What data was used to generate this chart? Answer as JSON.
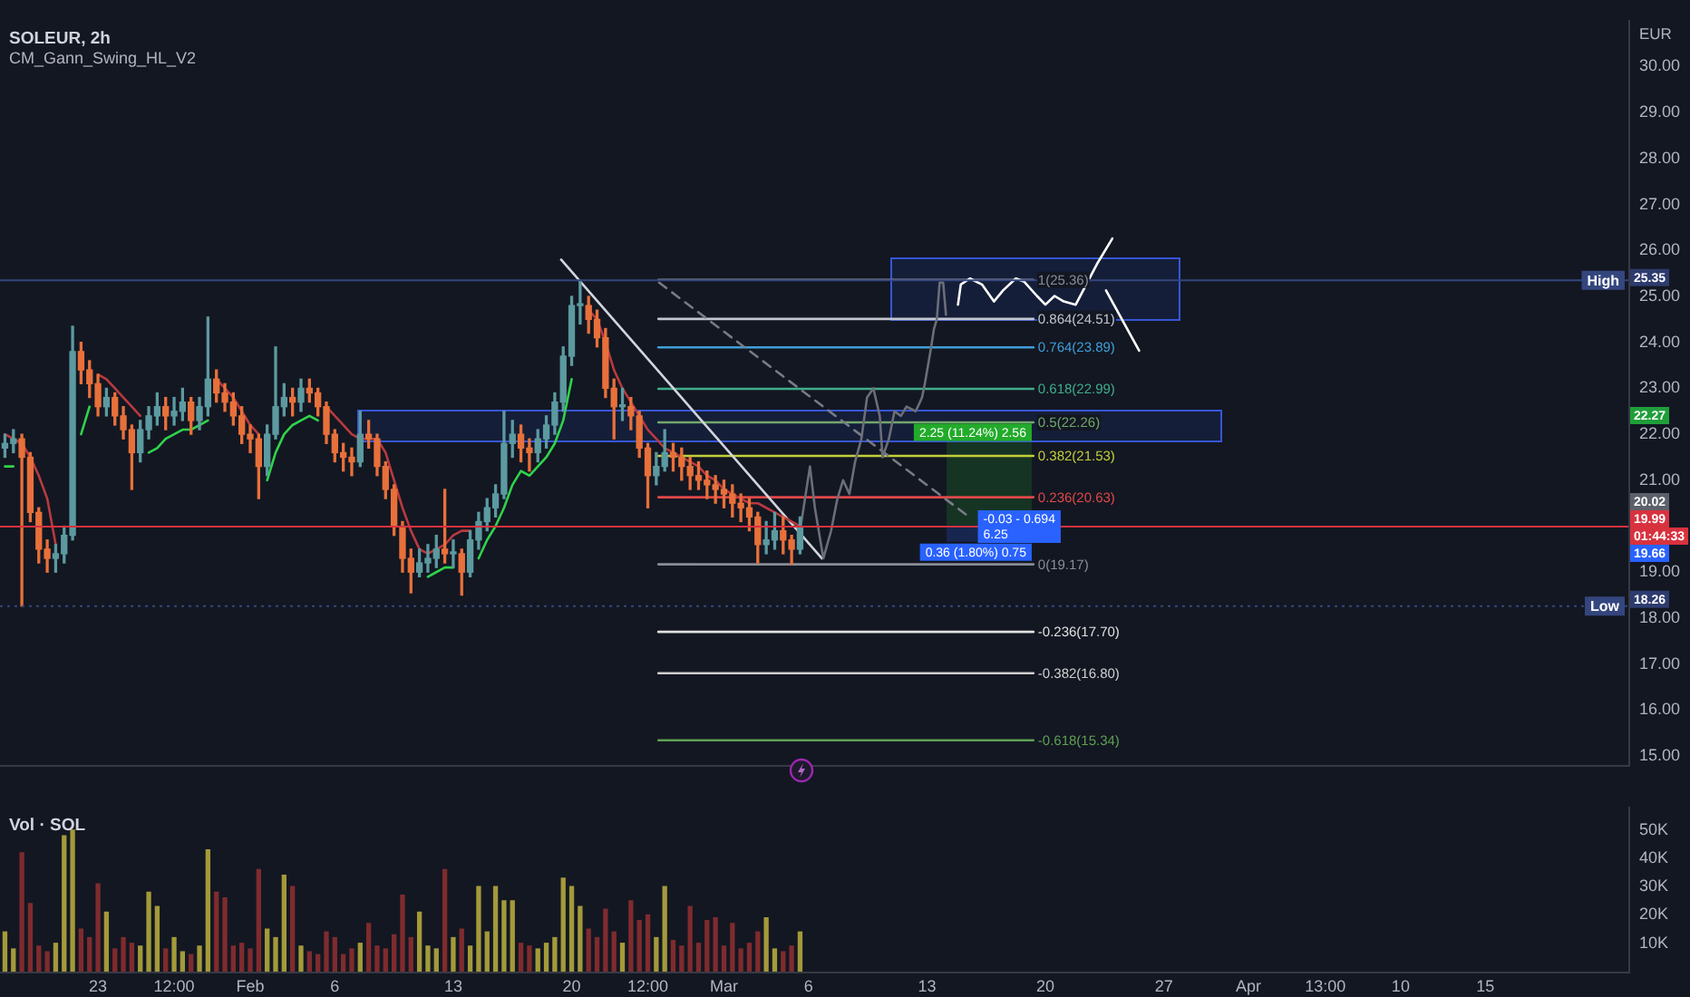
{
  "chart_data": [
    {
      "type": "candlestick",
      "title": "SOLEUR, 2h",
      "subtitle": "CM_Gann_Swing_HL_V2",
      "ylabel": "EUR",
      "tick_labels": "y",
      "x": [
        "--01-17T12:00",
        "--01-18T00:00",
        "--01-18T12:00",
        "--01-19T00:00",
        "--01-19T12:00",
        "--01-20T00:00",
        "--01-20T12:00",
        "--01-21T00:00",
        "--01-21T12:00",
        "--01-22T00:00",
        "--01-22T12:00",
        "--01-23T00:00",
        "--01-23T12:00",
        "--01-24T00:00",
        "--01-24T12:00",
        "--01-25T00:00",
        "--01-25T12:00",
        "--01-26T00:00",
        "--01-26T12:00",
        "--01-27T00:00",
        "--01-27T12:00",
        "--01-28T00:00",
        "--01-28T12:00",
        "--01-29T00:00",
        "--01-29T12:00",
        "--01-30T00:00",
        "--01-30T12:00",
        "--01-31T00:00",
        "--01-31T12:00",
        "--02-01T00:00",
        "--02-01T12:00",
        "--02-02T00:00",
        "--02-02T12:00",
        "--02-03T00:00",
        "--02-03T12:00",
        "--02-04T00:00",
        "--02-04T12:00",
        "--02-05T00:00",
        "--02-05T12:00",
        "--02-06T00:00",
        "--02-06T12:00",
        "--02-07T00:00",
        "--02-07T12:00",
        "--02-08T00:00",
        "--02-08T12:00",
        "--02-09T00:00",
        "--02-09T12:00",
        "--02-10T00:00",
        "--02-10T12:00",
        "--02-11T00:00",
        "--02-11T12:00",
        "--02-12T00:00",
        "--02-12T12:00",
        "--02-13T00:00",
        "--02-13T12:00",
        "--02-14T00:00",
        "--02-14T12:00",
        "--02-15T00:00",
        "--02-15T12:00",
        "--02-16T00:00",
        "--02-16T12:00",
        "--02-17T00:00",
        "--02-17T12:00",
        "--02-18T00:00",
        "--02-18T12:00",
        "--02-19T00:00",
        "--02-19T12:00",
        "--02-20T00:00",
        "--02-20T12:00",
        "--02-21T00:00",
        "--02-21T12:00",
        "--02-22T00:00",
        "--02-22T12:00",
        "--02-23T00:00",
        "--02-23T12:00",
        "--02-24T00:00",
        "--02-24T12:00",
        "--02-25T00:00",
        "--02-25T12:00",
        "--02-26T00:00",
        "--02-26T12:00",
        "--02-27T00:00",
        "--02-27T12:00",
        "--02-28T00:00",
        "--02-28T12:00",
        "--03-01T00:00",
        "--03-01T12:00",
        "--03-02T00:00",
        "--03-02T12:00",
        "--03-03T00:00",
        "--03-03T12:00",
        "--03-04T00:00",
        "--03-04T12:00",
        "--03-05T00:00",
        "--03-05T12:00"
      ],
      "ohlc": [
        [
          21.7,
          22.0,
          21.5,
          21.8
        ],
        [
          21.8,
          22.1,
          21.6,
          21.9
        ],
        [
          21.9,
          22.0,
          18.26,
          21.5
        ],
        [
          21.5,
          21.6,
          20.1,
          20.3
        ],
        [
          20.3,
          20.4,
          19.2,
          19.5
        ],
        [
          19.5,
          19.7,
          19.0,
          19.3
        ],
        [
          19.3,
          19.6,
          19.0,
          19.4
        ],
        [
          19.4,
          20.0,
          19.2,
          19.8
        ],
        [
          19.8,
          24.35,
          19.7,
          23.8
        ],
        [
          23.8,
          24.0,
          23.1,
          23.4
        ],
        [
          23.4,
          23.6,
          22.8,
          23.1
        ],
        [
          23.1,
          23.3,
          22.4,
          22.6
        ],
        [
          22.6,
          23.0,
          22.4,
          22.8
        ],
        [
          22.8,
          22.9,
          22.2,
          22.4
        ],
        [
          22.4,
          22.6,
          21.9,
          22.1
        ],
        [
          22.1,
          22.2,
          20.8,
          21.6
        ],
        [
          21.6,
          22.3,
          21.4,
          22.1
        ],
        [
          22.1,
          22.6,
          21.9,
          22.4
        ],
        [
          22.4,
          22.9,
          22.2,
          22.6
        ],
        [
          22.6,
          22.8,
          22.1,
          22.4
        ],
        [
          22.4,
          22.8,
          22.2,
          22.5
        ],
        [
          22.5,
          23.0,
          22.3,
          22.7
        ],
        [
          22.7,
          22.8,
          22.0,
          22.3
        ],
        [
          22.3,
          22.8,
          22.1,
          22.6
        ],
        [
          22.6,
          24.55,
          22.4,
          23.2
        ],
        [
          23.2,
          23.4,
          22.7,
          22.9
        ],
        [
          22.9,
          23.1,
          22.5,
          22.7
        ],
        [
          22.7,
          22.9,
          22.2,
          22.4
        ],
        [
          22.4,
          22.6,
          21.8,
          22.0
        ],
        [
          22.0,
          22.2,
          21.6,
          21.9
        ],
        [
          21.9,
          22.0,
          20.6,
          21.3
        ],
        [
          21.3,
          22.2,
          21.1,
          22.0
        ],
        [
          22.0,
          23.9,
          21.9,
          22.6
        ],
        [
          22.6,
          23.1,
          22.4,
          22.8
        ],
        [
          22.8,
          23.0,
          22.4,
          22.7
        ],
        [
          22.7,
          23.2,
          22.5,
          23.0
        ],
        [
          23.0,
          23.2,
          22.7,
          22.9
        ],
        [
          22.9,
          23.0,
          22.4,
          22.6
        ],
        [
          22.6,
          22.7,
          21.8,
          22.0
        ],
        [
          22.0,
          22.1,
          21.4,
          21.6
        ],
        [
          21.6,
          21.8,
          21.2,
          21.5
        ],
        [
          21.5,
          21.7,
          21.1,
          21.4
        ],
        [
          21.4,
          22.5,
          21.3,
          22.0
        ],
        [
          22.0,
          22.3,
          21.7,
          21.9
        ],
        [
          21.9,
          22.0,
          21.1,
          21.3
        ],
        [
          21.3,
          21.4,
          20.6,
          20.8
        ],
        [
          20.8,
          20.9,
          19.8,
          20.0
        ],
        [
          20.0,
          20.1,
          19.0,
          19.3
        ],
        [
          19.3,
          19.5,
          18.55,
          19.0
        ],
        [
          19.0,
          19.5,
          18.9,
          19.2
        ],
        [
          19.2,
          19.6,
          19.0,
          19.3
        ],
        [
          19.3,
          19.8,
          19.1,
          19.5
        ],
        [
          19.5,
          20.8,
          19.2,
          19.4
        ],
        [
          19.4,
          19.7,
          19.1,
          19.4
        ],
        [
          19.4,
          19.5,
          18.5,
          19.0
        ],
        [
          19.0,
          19.9,
          18.9,
          19.7
        ],
        [
          19.7,
          20.3,
          19.5,
          20.1
        ],
        [
          20.1,
          20.6,
          19.9,
          20.4
        ],
        [
          20.4,
          20.9,
          20.2,
          20.7
        ],
        [
          20.7,
          22.5,
          20.6,
          21.8
        ],
        [
          21.8,
          22.3,
          21.5,
          22.0
        ],
        [
          22.0,
          22.2,
          21.4,
          21.7
        ],
        [
          21.7,
          21.9,
          21.2,
          21.6
        ],
        [
          21.6,
          22.1,
          21.4,
          21.9
        ],
        [
          21.9,
          22.4,
          21.7,
          22.2
        ],
        [
          22.2,
          22.9,
          22.0,
          22.7
        ],
        [
          22.7,
          23.9,
          22.5,
          23.7
        ],
        [
          23.7,
          25.0,
          23.5,
          24.8
        ],
        [
          24.8,
          25.35,
          24.4,
          24.8
        ],
        [
          24.8,
          25.0,
          24.2,
          24.5
        ],
        [
          24.5,
          24.7,
          23.9,
          24.1
        ],
        [
          24.1,
          24.3,
          22.8,
          23.0
        ],
        [
          23.0,
          23.2,
          21.9,
          22.6
        ],
        [
          22.6,
          23.0,
          22.3,
          22.6
        ],
        [
          22.6,
          22.8,
          22.1,
          22.4
        ],
        [
          22.4,
          22.5,
          21.5,
          21.7
        ],
        [
          21.7,
          21.8,
          20.4,
          21.1
        ],
        [
          21.1,
          21.6,
          20.9,
          21.3
        ],
        [
          21.3,
          22.1,
          21.2,
          21.6
        ],
        [
          21.6,
          21.8,
          21.2,
          21.5
        ],
        [
          21.5,
          21.7,
          21.0,
          21.3
        ],
        [
          21.3,
          21.5,
          20.8,
          21.1
        ],
        [
          21.1,
          21.4,
          20.8,
          21.0
        ],
        [
          21.0,
          21.2,
          20.6,
          20.9
        ],
        [
          20.9,
          21.1,
          20.5,
          20.8
        ],
        [
          20.8,
          21.0,
          20.4,
          20.7
        ],
        [
          20.7,
          20.9,
          20.2,
          20.5
        ],
        [
          20.5,
          20.7,
          20.1,
          20.4
        ],
        [
          20.4,
          20.6,
          19.9,
          20.2
        ],
        [
          20.2,
          20.3,
          19.2,
          19.6
        ],
        [
          19.6,
          20.1,
          19.4,
          19.7
        ],
        [
          19.7,
          20.3,
          19.5,
          19.9
        ],
        [
          19.9,
          20.2,
          19.4,
          19.7
        ],
        [
          19.7,
          19.8,
          19.17,
          19.5
        ],
        [
          19.5,
          20.2,
          19.4,
          19.99
        ]
      ],
      "colors": [
        "#5b9aa0",
        "#5b9aa0",
        "#e8703a",
        "#e8703a",
        "#e8703a",
        "#e8703a",
        "#5b9aa0",
        "#5b9aa0",
        "#5b9aa0",
        "#e8703a",
        "#e8703a",
        "#e8703a",
        "#5b9aa0",
        "#e8703a",
        "#e8703a",
        "#e8703a",
        "#5b9aa0",
        "#5b9aa0",
        "#5b9aa0",
        "#e8703a",
        "#5b9aa0",
        "#5b9aa0",
        "#e8703a",
        "#5b9aa0",
        "#5b9aa0",
        "#e8703a",
        "#e8703a",
        "#e8703a",
        "#e8703a",
        "#e8703a",
        "#e8703a",
        "#5b9aa0",
        "#5b9aa0",
        "#5b9aa0",
        "#e8703a",
        "#5b9aa0",
        "#e8703a",
        "#e8703a",
        "#e8703a",
        "#e8703a",
        "#e8703a",
        "#e8703a",
        "#5b9aa0",
        "#e8703a",
        "#e8703a",
        "#e8703a",
        "#e8703a",
        "#e8703a",
        "#e8703a",
        "#5b9aa0",
        "#5b9aa0",
        "#5b9aa0",
        "#e8703a",
        "#5b9aa0",
        "#e8703a",
        "#5b9aa0",
        "#5b9aa0",
        "#5b9aa0",
        "#5b9aa0",
        "#5b9aa0",
        "#5b9aa0",
        "#e8703a",
        "#e8703a",
        "#5b9aa0",
        "#5b9aa0",
        "#5b9aa0",
        "#5b9aa0",
        "#5b9aa0",
        "#5b9aa0",
        "#e8703a",
        "#e8703a",
        "#e8703a",
        "#e8703a",
        "#5b9aa0",
        "#e8703a",
        "#e8703a",
        "#e8703a",
        "#5b9aa0",
        "#5b9aa0",
        "#e8703a",
        "#e8703a",
        "#e8703a",
        "#e8703a",
        "#e8703a",
        "#e8703a",
        "#e8703a",
        "#e8703a",
        "#e8703a",
        "#e8703a",
        "#e8703a",
        "#5b9aa0",
        "#5b9aa0",
        "#e8703a",
        "#e8703a",
        "#5b9aa0"
      ],
      "series": [
        {
          "type": "line",
          "color": "#b83a3f",
          "values": [
            22.0,
            21.9,
            21.8,
            21.5,
            21.1,
            20.6,
            19.6,
            null,
            null,
            null,
            null,
            23.3,
            23.2,
            23.0,
            22.8,
            22.6,
            22.4,
            null,
            null,
            null,
            null,
            null,
            null,
            null,
            null,
            23.2,
            23.0,
            22.8,
            22.5,
            22.2,
            22.0,
            null,
            null,
            null,
            null,
            null,
            null,
            null,
            22.6,
            22.4,
            22.2,
            22.0,
            21.9,
            21.9,
            21.9,
            21.6,
            21.0,
            20.4,
            19.9,
            19.5,
            19.4,
            19.5,
            19.6,
            19.8,
            19.9,
            19.9,
            null,
            null,
            null,
            null,
            null,
            null,
            null,
            null,
            null,
            null,
            null,
            null,
            null,
            24.7,
            24.5,
            24.0,
            23.4,
            23.0,
            22.7,
            22.4,
            22.1,
            21.9,
            21.7,
            21.6,
            21.5,
            21.4,
            21.3,
            21.1,
            21.0,
            20.8,
            20.7,
            20.6,
            20.5,
            20.5,
            20.4,
            20.3,
            20.2,
            20.1,
            20.0
          ]
        },
        {
          "type": "line",
          "color": "#2fd34a",
          "values": [
            21.3,
            21.3,
            null,
            null,
            null,
            null,
            null,
            null,
            null,
            22.0,
            22.6,
            null,
            null,
            null,
            null,
            null,
            null,
            21.6,
            21.7,
            21.9,
            22.0,
            22.1,
            22.1,
            22.2,
            22.3,
            null,
            null,
            null,
            null,
            null,
            null,
            21.0,
            21.6,
            22.0,
            22.2,
            22.3,
            22.4,
            22.3,
            null,
            null,
            null,
            null,
            null,
            null,
            null,
            null,
            null,
            null,
            null,
            null,
            18.9,
            19.0,
            19.1,
            19.1,
            null,
            null,
            19.3,
            19.7,
            20.0,
            20.4,
            20.9,
            21.2,
            21.1,
            21.3,
            21.5,
            21.8,
            22.3,
            23.2,
            null,
            null,
            null,
            null,
            null,
            null,
            null,
            null,
            null,
            null,
            null,
            null,
            null,
            null,
            null,
            null,
            null,
            null,
            null,
            null,
            null,
            null,
            null,
            null,
            null,
            null,
            null
          ]
        },
        {
          "type": "line",
          "color": "#6b6e78",
          "x": [
            "--03-05T13:00",
            "--03-06T02:00",
            "--03-06T09:00",
            "--03-06T21:00",
            "--03-07T08:00",
            "--03-07T17:00",
            "--03-08T01:00",
            "--03-08T10:00",
            "--03-08T18:00",
            "--03-09T03:00",
            "--03-09T11:00",
            "--03-09T20:00",
            "--03-10T05:00",
            "--03-10T09:00",
            "--03-10T18:00",
            "--03-11T02:00",
            "--03-11T11:00",
            "--03-11T19:00",
            "--03-12T08:00",
            "--03-12T17:00",
            "--03-12T21:00",
            "--03-13T06:00",
            "--03-13T10:00",
            "--03-13T14:00",
            "--03-13T18:00",
            "--03-13T23:00",
            "--03-14T03:00"
          ],
          "values": [
            20.0,
            21.3,
            20.4,
            19.3,
            19.9,
            20.6,
            21.0,
            20.7,
            21.4,
            21.9,
            22.8,
            23.0,
            22.4,
            21.5,
            21.9,
            22.5,
            22.4,
            22.6,
            22.5,
            22.8,
            23.1,
            23.9,
            24.3,
            24.5,
            25.3,
            25.3,
            24.6
          ]
        },
        {
          "type": "line",
          "color": "#d1d4dc",
          "x": [
            "--02-19T09:00",
            "--03-06T19:00"
          ],
          "values": [
            25.8,
            19.3
          ]
        },
        {
          "type": "line",
          "color": "#787b86",
          "line_style": "dashed",
          "x": [
            "--02-25T04:00",
            "--03-15T12:00"
          ],
          "values": [
            25.3,
            20.2
          ]
        },
        {
          "type": "line",
          "color": "#ffffff",
          "x": [
            "--03-14T20:00",
            "--03-15T00:00",
            "--03-15T13:00",
            "--03-16T06:00",
            "--03-16T23:00",
            "--03-17T12:00",
            "--03-18T06:00",
            "--03-18T18:00",
            "--03-19T12:00",
            "--03-20T00:00",
            "--03-20T13:00",
            "--03-21T02:00",
            "--03-21T19:00",
            "--03-22T08:00",
            "--03-23T01:00",
            "--03-23T23:00"
          ],
          "values": [
            24.82,
            25.26,
            25.39,
            25.26,
            24.89,
            25.13,
            25.39,
            25.32,
            25.01,
            24.82,
            25.01,
            24.89,
            24.82,
            25.2,
            25.7,
            26.26
          ]
        },
        {
          "type": "line",
          "color": "#ffffff",
          "x": [
            "--03-23T14:00",
            "--03-25T13:00"
          ],
          "values": [
            25.13,
            23.82
          ]
        },
        {
          "type": "line",
          "name": "1(25.36)",
          "color": "#8a8d96",
          "x": [
            "--02-25T03:00",
            "--03-19T07:00"
          ],
          "values": [
            25.36,
            25.36
          ]
        },
        {
          "type": "line",
          "name": "0.864(24.51)",
          "color": "#c3c6ce",
          "x": [
            "--02-25T03:00",
            "--03-19T07:00"
          ],
          "values": [
            24.51,
            24.51
          ]
        },
        {
          "type": "line",
          "name": "0.764(23.89)",
          "color": "#3f9fd8",
          "x": [
            "--02-25T03:00",
            "--03-19T07:00"
          ],
          "values": [
            23.89,
            23.89
          ]
        },
        {
          "type": "line",
          "name": "0.618(22.99)",
          "color": "#3fae8a",
          "x": [
            "--02-25T03:00",
            "--03-19T07:00"
          ],
          "values": [
            22.99,
            22.99
          ]
        },
        {
          "type": "line",
          "name": "0.5(22.26)",
          "color": "#72a86c",
          "x": [
            "--02-25T03:00",
            "--03-19T07:00"
          ],
          "values": [
            22.26,
            22.26
          ]
        },
        {
          "type": "line",
          "name": "0.382(21.53)",
          "color": "#c3cf3a",
          "x": [
            "--02-25T03:00",
            "--03-19T07:00"
          ],
          "values": [
            21.53,
            21.53
          ]
        },
        {
          "type": "line",
          "name": "0.236(20.63)",
          "color": "#e04848",
          "x": [
            "--02-25T03:00",
            "--03-19T07:00"
          ],
          "values": [
            20.63,
            20.63
          ]
        },
        {
          "type": "line",
          "name": "0(19.17)",
          "color": "#8a8d96",
          "x": [
            "--02-25T03:00",
            "--03-19T07:00"
          ],
          "values": [
            19.17,
            19.17
          ]
        },
        {
          "type": "line",
          "name": "-0.236(17.70)",
          "color": "#e0e0e0",
          "x": [
            "--02-25T03:00",
            "--03-19T07:00"
          ],
          "values": [
            17.7,
            17.7
          ]
        },
        {
          "type": "line",
          "name": "-0.382(16.80)",
          "color": "#d0d0d0",
          "x": [
            "--02-25T03:00",
            "--03-19T07:00"
          ],
          "values": [
            16.8,
            16.8
          ]
        },
        {
          "type": "line",
          "name": "-0.618(15.34)",
          "color": "#5fa052",
          "x": [
            "--02-25T03:00",
            "--03-19T07:00"
          ],
          "values": [
            15.34,
            15.34
          ]
        }
      ],
      "ref_lines": [
        {
          "axis": "y",
          "value": 25.35,
          "label": "High",
          "color": "#34467e"
        },
        {
          "axis": "y",
          "value": 19.99,
          "color": "#d8323f"
        },
        {
          "axis": "y",
          "value": 18.26,
          "label": "Low",
          "color": "#34467e",
          "line_style": "dotted"
        }
      ],
      "bands": [
        {
          "axis": "y",
          "from": 20.02,
          "to": 22.27,
          "label": "2.25 (11.24%) 2.56",
          "color": "#22ab2a"
        },
        {
          "axis": "y",
          "from": 20.02,
          "to": 19.66,
          "label": "0.36 (1.80%) 0.75",
          "color": "#2962ff"
        }
      ],
      "annotations": [
        {
          "text": "-0.03 - 0.694\n6.25",
          "x": "--03-18T11:00",
          "y": 19.99
        },
        {
          "text": "25.35",
          "x": "--04-23T11:00",
          "y": 25.35
        },
        "22.27",
        "20.02",
        {
          "text": "19.99",
          "x": "--04-23T11:00",
          "y": 19.99
        },
        {
          "text": "01:44:33",
          "x": "--04-23T11:00",
          "y": 19.99
        },
        "19.66",
        {
          "text": "18.26",
          "x": "--04-23T11:00",
          "y": 18.26
        }
      ],
      "xlim": [
        "--01-17T05:00",
        "--04-23T11:00"
      ],
      "ylim": [
        14.78,
        31.0
      ],
      "yticks": [
        {
          "value": 15,
          "label": "15.00"
        },
        {
          "value": 16,
          "label": "16.00"
        },
        {
          "value": 17,
          "label": "17.00"
        },
        {
          "value": 18,
          "label": "18.00"
        },
        {
          "value": 19,
          "label": "19.00"
        },
        {
          "value": 21,
          "label": "21.00"
        },
        {
          "value": 22,
          "label": "22.00"
        },
        {
          "value": 23,
          "label": "23.00"
        },
        {
          "value": 24,
          "label": "24.00"
        },
        {
          "value": 25,
          "label": "25.00"
        },
        {
          "value": 26,
          "label": "26.00"
        },
        {
          "value": 27,
          "label": "27.00"
        },
        {
          "value": 28,
          "label": "28.00"
        },
        {
          "value": 29,
          "label": "29.00"
        },
        {
          "value": 30,
          "label": "30.00"
        }
      ]
    },
    {
      "type": "bar",
      "title": "Vol · SOL",
      "x": [
        "--01-17T12:00",
        "--01-18T00:00",
        "--01-18T12:00",
        "--01-19T00:00",
        "--01-19T12:00",
        "--01-20T00:00",
        "--01-20T12:00",
        "--01-21T00:00",
        "--01-21T12:00",
        "--01-22T00:00",
        "--01-22T12:00",
        "--01-23T00:00",
        "--01-23T12:00",
        "--01-24T00:00",
        "--01-24T12:00",
        "--01-25T00:00",
        "--01-25T12:00",
        "--01-26T00:00",
        "--01-26T12:00",
        "--01-27T00:00",
        "--01-27T12:00",
        "--01-28T00:00",
        "--01-28T12:00",
        "--01-29T00:00",
        "--01-29T12:00",
        "--01-30T00:00",
        "--01-30T12:00",
        "--01-31T00:00",
        "--01-31T12:00",
        "--02-01T00:00",
        "--02-01T12:00",
        "--02-02T00:00",
        "--02-02T12:00",
        "--02-03T00:00",
        "--02-03T12:00",
        "--02-04T00:00",
        "--02-04T12:00",
        "--02-05T00:00",
        "--02-05T12:00",
        "--02-06T00:00",
        "--02-06T12:00",
        "--02-07T00:00",
        "--02-07T12:00",
        "--02-08T00:00",
        "--02-08T12:00",
        "--02-09T00:00",
        "--02-09T12:00",
        "--02-10T00:00",
        "--02-10T12:00",
        "--02-11T00:00",
        "--02-11T12:00",
        "--02-12T00:00",
        "--02-12T12:00",
        "--02-13T00:00",
        "--02-13T12:00",
        "--02-14T00:00",
        "--02-14T12:00",
        "--02-15T00:00",
        "--02-15T12:00",
        "--02-16T00:00",
        "--02-16T12:00",
        "--02-17T00:00",
        "--02-17T12:00",
        "--02-18T00:00",
        "--02-18T12:00",
        "--02-19T00:00",
        "--02-19T12:00",
        "--02-20T00:00",
        "--02-20T12:00",
        "--02-21T00:00",
        "--02-21T12:00",
        "--02-22T00:00",
        "--02-22T12:00",
        "--02-23T00:00",
        "--02-23T12:00",
        "--02-24T00:00",
        "--02-24T12:00",
        "--02-25T00:00",
        "--02-25T12:00",
        "--02-26T00:00",
        "--02-26T12:00",
        "--02-27T00:00",
        "--02-27T12:00",
        "--02-28T00:00",
        "--02-28T12:00",
        "--03-01T00:00",
        "--03-01T12:00",
        "--03-02T00:00",
        "--03-02T12:00",
        "--03-03T00:00",
        "--03-03T12:00",
        "--03-04T00:00",
        "--03-04T12:00",
        "--03-05T00:00",
        "--03-05T12:00"
      ],
      "values": [
        14000,
        8000,
        42000,
        24000,
        9000,
        7000,
        10000,
        48000,
        50000,
        15000,
        12000,
        31000,
        21000,
        8000,
        12000,
        10000,
        9000,
        28000,
        23000,
        8000,
        12000,
        7000,
        6000,
        9000,
        43000,
        28000,
        26000,
        9000,
        10000,
        8000,
        36000,
        15000,
        12000,
        34000,
        30000,
        9000,
        7000,
        6000,
        14000,
        12000,
        6000,
        8000,
        10000,
        17000,
        9000,
        8000,
        13000,
        27000,
        12000,
        21000,
        9000,
        8000,
        36000,
        12000,
        15000,
        9000,
        30000,
        14000,
        30000,
        25000,
        25000,
        10000,
        9000,
        8000,
        10000,
        12000,
        33000,
        30000,
        23000,
        15000,
        12000,
        22000,
        14000,
        10000,
        25000,
        18000,
        20000,
        12000,
        30000,
        11000,
        9000,
        23000,
        10000,
        18000,
        19000,
        9000,
        17000,
        8000,
        10000,
        14000,
        19000,
        8000,
        7000,
        9000,
        14000
      ],
      "colors": [
        "#a39a3a",
        "#a39a3a",
        "#7f2b2e",
        "#7f2b2e",
        "#7f2b2e",
        "#7f2b2e",
        "#a39a3a",
        "#a39a3a",
        "#a39a3a",
        "#7f2b2e",
        "#7f2b2e",
        "#7f2b2e",
        "#a39a3a",
        "#7f2b2e",
        "#7f2b2e",
        "#7f2b2e",
        "#a39a3a",
        "#a39a3a",
        "#a39a3a",
        "#7f2b2e",
        "#a39a3a",
        "#a39a3a",
        "#7f2b2e",
        "#a39a3a",
        "#a39a3a",
        "#7f2b2e",
        "#7f2b2e",
        "#7f2b2e",
        "#7f2b2e",
        "#7f2b2e",
        "#7f2b2e",
        "#a39a3a",
        "#a39a3a",
        "#a39a3a",
        "#7f2b2e",
        "#a39a3a",
        "#7f2b2e",
        "#7f2b2e",
        "#7f2b2e",
        "#7f2b2e",
        "#7f2b2e",
        "#7f2b2e",
        "#a39a3a",
        "#7f2b2e",
        "#7f2b2e",
        "#7f2b2e",
        "#7f2b2e",
        "#7f2b2e",
        "#7f2b2e",
        "#a39a3a",
        "#a39a3a",
        "#a39a3a",
        "#7f2b2e",
        "#a39a3a",
        "#7f2b2e",
        "#a39a3a",
        "#a39a3a",
        "#a39a3a",
        "#a39a3a",
        "#a39a3a",
        "#a39a3a",
        "#7f2b2e",
        "#7f2b2e",
        "#a39a3a",
        "#a39a3a",
        "#a39a3a",
        "#a39a3a",
        "#a39a3a",
        "#a39a3a",
        "#7f2b2e",
        "#7f2b2e",
        "#7f2b2e",
        "#7f2b2e",
        "#a39a3a",
        "#7f2b2e",
        "#7f2b2e",
        "#7f2b2e",
        "#a39a3a",
        "#a39a3a",
        "#7f2b2e",
        "#7f2b2e",
        "#7f2b2e",
        "#7f2b2e",
        "#7f2b2e",
        "#7f2b2e",
        "#7f2b2e",
        "#7f2b2e",
        "#7f2b2e",
        "#7f2b2e",
        "#7f2b2e",
        "#a39a3a",
        "#a39a3a",
        "#7f2b2e",
        "#7f2b2e",
        "#a39a3a"
      ],
      "xlim": [
        "--01-17T05:00",
        "--04-23T11:00"
      ],
      "ylim": [
        0,
        58000
      ],
      "yticks": [
        {
          "value": 10000,
          "label": "10K"
        },
        {
          "value": 20000,
          "label": "20K"
        },
        {
          "value": 30000,
          "label": "30K"
        },
        {
          "value": 40000,
          "label": "40K"
        },
        {
          "value": 50000,
          "label": "50K"
        }
      ],
      "xticks": [
        {
          "value": "--01-23",
          "label": "23"
        },
        {
          "value": "--01-27T12:00",
          "label": "12:00"
        },
        {
          "value": "--02-01",
          "label": "Feb"
        },
        {
          "value": "--02-06",
          "label": "6"
        },
        {
          "value": "--02-13",
          "label": "13"
        },
        {
          "value": "--02-20",
          "label": "20"
        },
        {
          "value": "--02-24T12:00",
          "label": "12:00"
        },
        {
          "value": "--03-01",
          "label": "Mar"
        },
        {
          "value": "--03-06",
          "label": "6"
        },
        {
          "value": "--03-13",
          "label": "13"
        },
        {
          "value": "--03-20",
          "label": "20"
        },
        {
          "value": "--03-27",
          "label": "27"
        },
        {
          "value": "--04-01",
          "label": "Apr"
        },
        {
          "value": "--04-05T13:00",
          "label": "13:00"
        },
        {
          "value": "--04-10",
          "label": "10"
        },
        {
          "value": "--04-15",
          "label": "15"
        }
      ]
    }
  ]
}
